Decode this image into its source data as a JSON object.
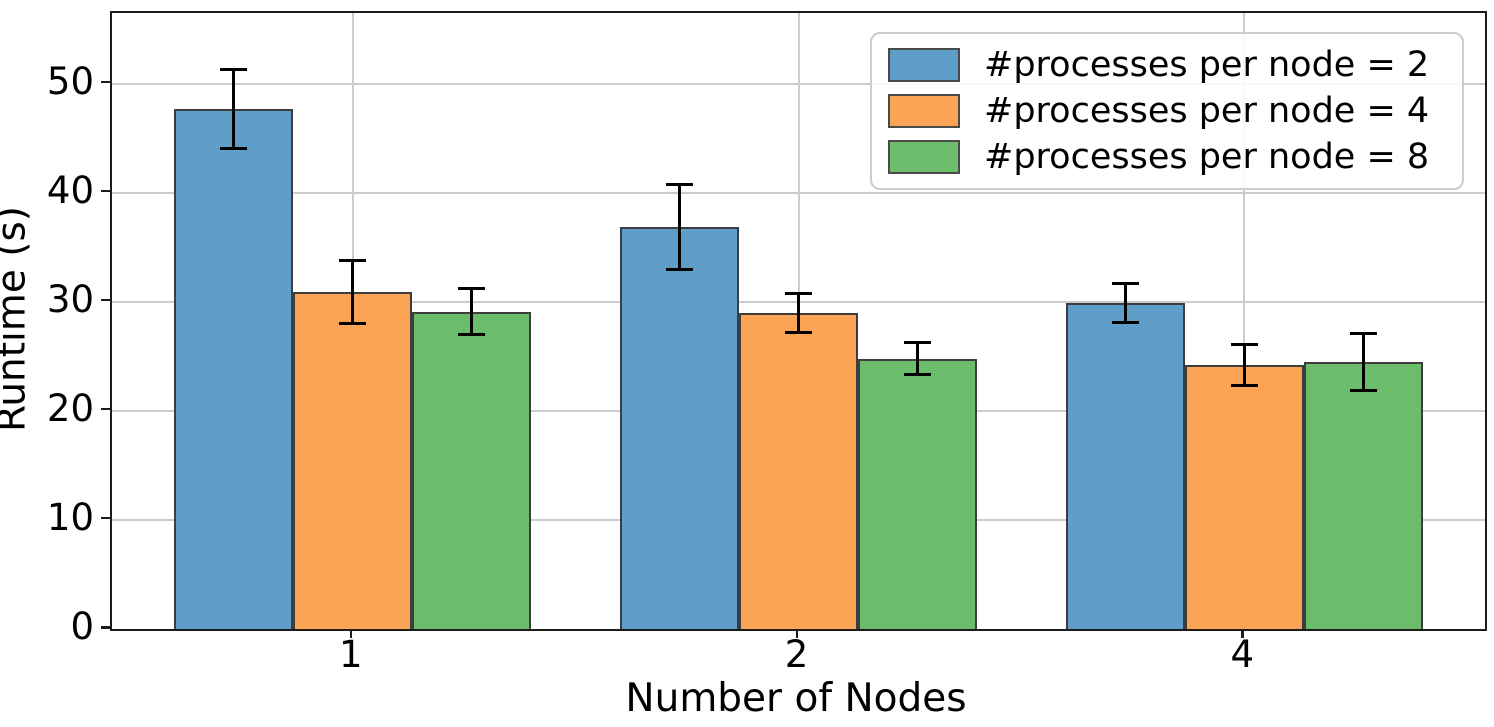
{
  "chart_data": {
    "type": "bar",
    "title": "",
    "xlabel": "Number of Nodes",
    "ylabel": "Runtime (s)",
    "categories": [
      "1",
      "2",
      "4"
    ],
    "series": [
      {
        "name": "#processes per node = 2",
        "color": "#5f9ec9",
        "values": [
          47.7,
          36.9,
          29.9
        ],
        "errors": [
          3.6,
          3.9,
          1.8
        ]
      },
      {
        "name": "#processes per node = 4",
        "color": "#fca456",
        "values": [
          30.9,
          29.0,
          24.2
        ],
        "errors": [
          2.9,
          1.8,
          1.9
        ]
      },
      {
        "name": "#processes per node = 8",
        "color": "#6bbc6b",
        "values": [
          29.1,
          24.8,
          24.5
        ],
        "errors": [
          2.1,
          1.5,
          2.6
        ]
      }
    ],
    "yticks": [
      0,
      10,
      20,
      30,
      40,
      50
    ],
    "ylim": [
      0,
      56.5
    ],
    "grid": true,
    "error_bars": true,
    "legend_position": "upper right",
    "bar_group_width": 0.8,
    "colors": {
      "grid": "#cccccc",
      "spine": "#1c1c1c",
      "bar_edge": "#3d3d3d",
      "error_bar": "#000000",
      "legend_border": "#cccccc"
    }
  }
}
